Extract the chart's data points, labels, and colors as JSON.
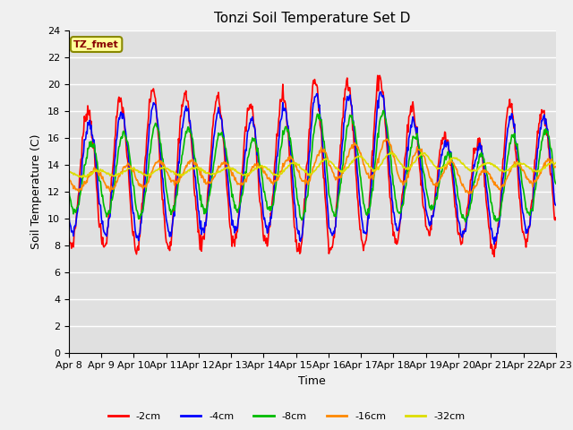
{
  "title": "Tonzi Soil Temperature Set D",
  "xlabel": "Time",
  "ylabel": "Soil Temperature (C)",
  "legend_label": "TZ_fmet",
  "ylim": [
    0,
    24
  ],
  "yticks": [
    0,
    2,
    4,
    6,
    8,
    10,
    12,
    14,
    16,
    18,
    20,
    22,
    24
  ],
  "x_tick_labels": [
    "Apr 8",
    "Apr 9",
    "Apr 10",
    "Apr 11",
    "Apr 12",
    "Apr 13",
    "Apr 14",
    "Apr 15",
    "Apr 16",
    "Apr 17",
    "Apr 18",
    "Apr 19",
    "Apr 20",
    "Apr 21",
    "Apr 22",
    "Apr 23"
  ],
  "series_colors": {
    "-2cm": "#ff0000",
    "-4cm": "#0000ff",
    "-8cm": "#00bb00",
    "-16cm": "#ff8800",
    "-32cm": "#dddd00"
  },
  "series_lw": 1.2,
  "fig_bg_color": "#f0f0f0",
  "plot_bg_color": "#e0e0e0",
  "grid_color": "#ffffff",
  "annotation_bg": "#ffff99",
  "annotation_text_color": "#880000",
  "annotation_border_color": "#888800"
}
